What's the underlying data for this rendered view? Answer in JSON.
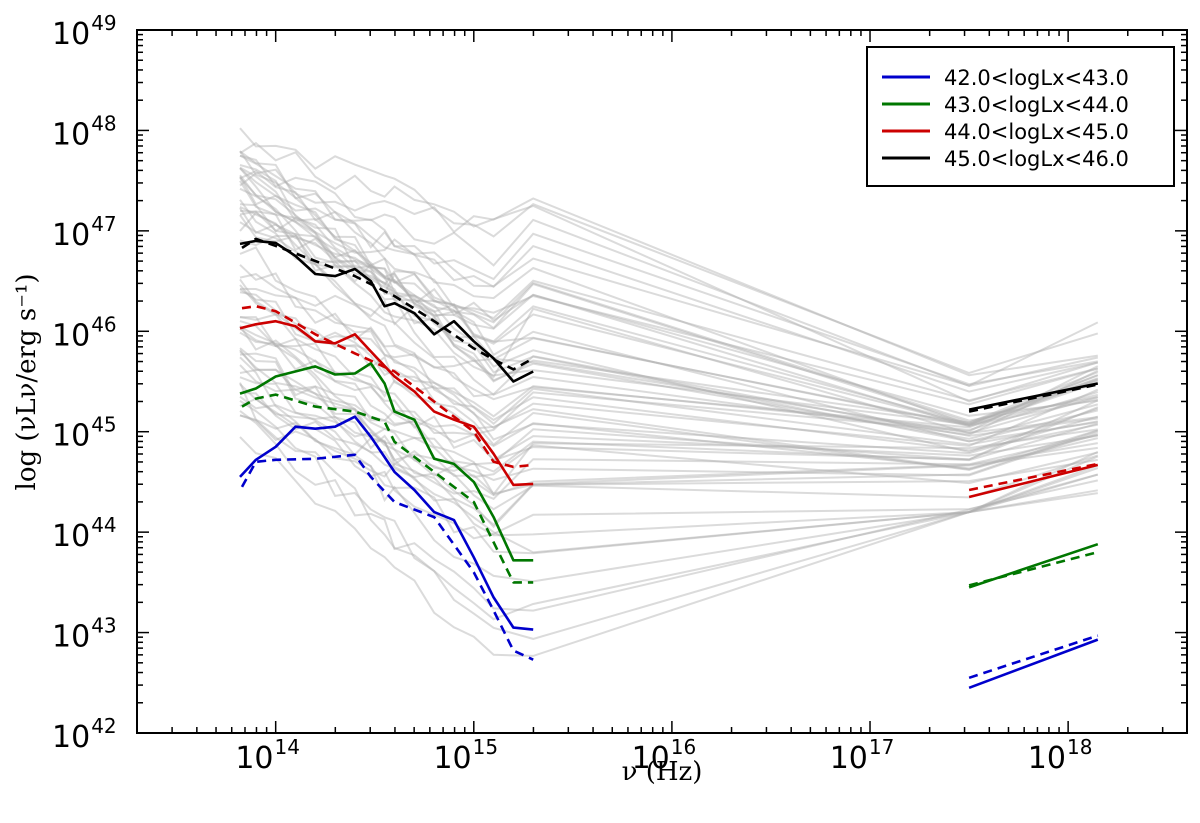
{
  "chart_data": {
    "type": "line",
    "title": "",
    "xlabel": "ν (Hz)",
    "ylabel": "log (νLν/erg s⁻¹)",
    "xscale": "log",
    "yscale": "log",
    "xlim_log10": [
      13.3,
      18.6
    ],
    "ylim_log10": [
      42,
      49
    ],
    "x_ticks": [
      {
        "base": "10",
        "exp": "14",
        "log": 14
      },
      {
        "base": "10",
        "exp": "15",
        "log": 15
      },
      {
        "base": "10",
        "exp": "16",
        "log": 16
      },
      {
        "base": "10",
        "exp": "17",
        "log": 17
      },
      {
        "base": "10",
        "exp": "18",
        "log": 18
      }
    ],
    "y_ticks": [
      {
        "base": "10",
        "exp": "42",
        "log": 42
      },
      {
        "base": "10",
        "exp": "43",
        "log": 43
      },
      {
        "base": "10",
        "exp": "44",
        "log": 44
      },
      {
        "base": "10",
        "exp": "45",
        "log": 45
      },
      {
        "base": "10",
        "exp": "46",
        "log": 46
      },
      {
        "base": "10",
        "exp": "47",
        "log": 47
      },
      {
        "base": "10",
        "exp": "48",
        "log": 48
      },
      {
        "base": "10",
        "exp": "49",
        "log": 49
      }
    ],
    "legend": {
      "placement": "top-right",
      "entries": [
        {
          "label": "42.0<logLx<43.0",
          "color": "#0000cc"
        },
        {
          "label": "43.0<logLx<44.0",
          "color": "#007700"
        },
        {
          "label": "44.0<logLx<45.0",
          "color": "#cc0000"
        },
        {
          "label": "45.0<logLx<46.0",
          "color": "#000000"
        }
      ]
    },
    "series": [
      {
        "name": "42.0<logLx<43.0",
        "color": "#0000cc",
        "solid": {
          "optical": [
            [
              13.82,
              44.55
            ],
            [
              13.9,
              44.72
            ],
            [
              14.0,
              44.85
            ],
            [
              14.1,
              45.05
            ],
            [
              14.2,
              45.03
            ],
            [
              14.3,
              45.05
            ],
            [
              14.4,
              45.15
            ],
            [
              14.48,
              44.95
            ],
            [
              14.6,
              44.6
            ],
            [
              14.7,
              44.42
            ],
            [
              14.8,
              44.2
            ],
            [
              14.9,
              44.12
            ],
            [
              15.0,
              43.75
            ],
            [
              15.1,
              43.35
            ],
            [
              15.2,
              43.05
            ],
            [
              15.3,
              43.03
            ]
          ],
          "xray": [
            [
              17.5,
              42.45
            ],
            [
              18.15,
              42.93
            ]
          ]
        },
        "dashed": {
          "optical": [
            [
              13.83,
              44.45
            ],
            [
              13.9,
              44.7
            ],
            [
              14.0,
              44.72
            ],
            [
              14.2,
              44.73
            ],
            [
              14.4,
              44.77
            ],
            [
              14.48,
              44.55
            ],
            [
              14.6,
              44.3
            ],
            [
              14.8,
              44.15
            ],
            [
              15.0,
              43.6
            ],
            [
              15.1,
              43.22
            ],
            [
              15.2,
              42.82
            ],
            [
              15.3,
              42.73
            ]
          ],
          "xray": [
            [
              17.5,
              42.55
            ],
            [
              18.15,
              42.97
            ]
          ]
        }
      },
      {
        "name": "43.0<logLx<44.0",
        "color": "#007700",
        "solid": {
          "optical": [
            [
              13.82,
              45.38
            ],
            [
              13.9,
              45.43
            ],
            [
              14.0,
              45.55
            ],
            [
              14.2,
              45.65
            ],
            [
              14.3,
              45.57
            ],
            [
              14.4,
              45.58
            ],
            [
              14.48,
              45.68
            ],
            [
              14.55,
              45.48
            ],
            [
              14.6,
              45.2
            ],
            [
              14.7,
              45.12
            ],
            [
              14.8,
              44.73
            ],
            [
              14.9,
              44.68
            ],
            [
              15.0,
              44.5
            ],
            [
              15.1,
              44.15
            ],
            [
              15.2,
              43.72
            ],
            [
              15.3,
              43.72
            ]
          ],
          "xray": [
            [
              17.5,
              43.45
            ],
            [
              18.15,
              43.88
            ]
          ]
        },
        "dashed": {
          "optical": [
            [
              13.83,
              45.25
            ],
            [
              13.9,
              45.33
            ],
            [
              14.0,
              45.37
            ],
            [
              14.2,
              45.25
            ],
            [
              14.4,
              45.2
            ],
            [
              14.55,
              45.1
            ],
            [
              14.6,
              44.9
            ],
            [
              14.8,
              44.6
            ],
            [
              15.0,
              44.3
            ],
            [
              15.1,
              43.9
            ],
            [
              15.2,
              43.5
            ],
            [
              15.3,
              43.5
            ]
          ],
          "xray": [
            [
              17.5,
              43.47
            ],
            [
              18.15,
              43.8
            ]
          ]
        }
      },
      {
        "name": "44.0<logLx<45.0",
        "color": "#cc0000",
        "solid": {
          "optical": [
            [
              13.82,
              46.03
            ],
            [
              13.9,
              46.07
            ],
            [
              14.0,
              46.1
            ],
            [
              14.1,
              46.05
            ],
            [
              14.2,
              45.9
            ],
            [
              14.3,
              45.88
            ],
            [
              14.4,
              45.97
            ],
            [
              14.48,
              45.8
            ],
            [
              14.6,
              45.55
            ],
            [
              14.7,
              45.4
            ],
            [
              14.8,
              45.2
            ],
            [
              14.9,
              45.12
            ],
            [
              15.0,
              45.05
            ],
            [
              15.1,
              44.78
            ],
            [
              15.2,
              44.47
            ],
            [
              15.3,
              44.48
            ]
          ],
          "xray": [
            [
              17.5,
              44.35
            ],
            [
              18.15,
              44.67
            ]
          ]
        },
        "dashed": {
          "optical": [
            [
              13.83,
              46.23
            ],
            [
              13.9,
              46.25
            ],
            [
              14.0,
              46.2
            ],
            [
              14.2,
              45.97
            ],
            [
              14.4,
              45.78
            ],
            [
              14.6,
              45.6
            ],
            [
              14.8,
              45.3
            ],
            [
              15.0,
              45.0
            ],
            [
              15.1,
              44.7
            ],
            [
              15.2,
              44.65
            ],
            [
              15.3,
              44.67
            ]
          ],
          "xray": [
            [
              17.5,
              44.42
            ],
            [
              18.15,
              44.68
            ]
          ]
        }
      },
      {
        "name": "45.0<logLx<46.0",
        "color": "#000000",
        "solid": {
          "optical": [
            [
              13.82,
              46.87
            ],
            [
              13.9,
              46.9
            ],
            [
              14.0,
              46.88
            ],
            [
              14.1,
              46.75
            ],
            [
              14.2,
              46.57
            ],
            [
              14.3,
              46.55
            ],
            [
              14.4,
              46.62
            ],
            [
              14.48,
              46.5
            ],
            [
              14.55,
              46.25
            ],
            [
              14.6,
              46.28
            ],
            [
              14.7,
              46.18
            ],
            [
              14.8,
              45.97
            ],
            [
              14.9,
              46.1
            ],
            [
              15.0,
              45.9
            ],
            [
              15.1,
              45.73
            ],
            [
              15.2,
              45.5
            ],
            [
              15.3,
              45.6
            ]
          ],
          "xray": [
            [
              17.5,
              45.22
            ],
            [
              18.15,
              45.48
            ]
          ]
        },
        "dashed": {
          "optical": [
            [
              13.83,
              46.83
            ],
            [
              13.9,
              46.92
            ],
            [
              14.0,
              46.85
            ],
            [
              14.2,
              46.7
            ],
            [
              14.4,
              46.55
            ],
            [
              14.6,
              46.35
            ],
            [
              14.8,
              46.1
            ],
            [
              15.0,
              45.83
            ],
            [
              15.1,
              45.72
            ],
            [
              15.2,
              45.62
            ],
            [
              15.3,
              45.73
            ]
          ],
          "xray": [
            [
              17.5,
              45.2
            ],
            [
              18.15,
              45.47
            ]
          ]
        }
      }
    ],
    "background_sed_count": 60,
    "background_sed_color": "#b0b0b0"
  }
}
